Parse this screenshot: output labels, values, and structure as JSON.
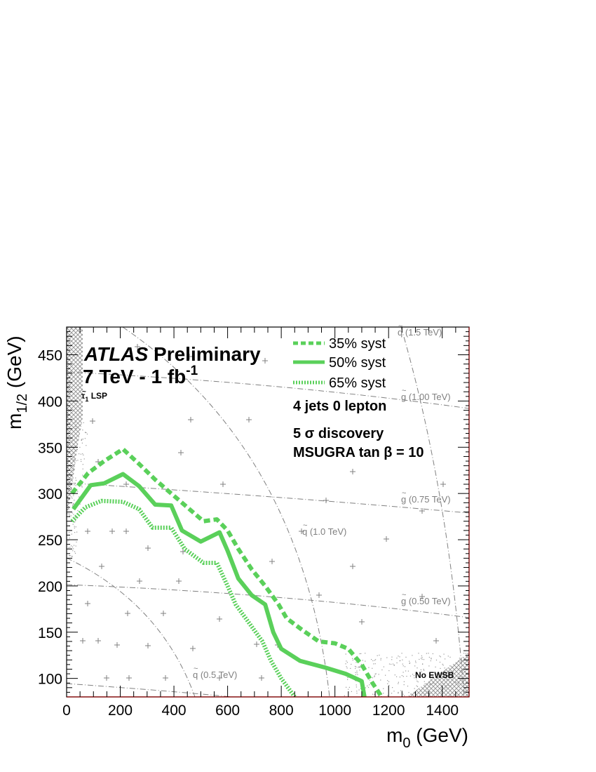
{
  "chart_data": {
    "type": "line",
    "title": "",
    "xlabel_main": "m",
    "xlabel_sub": "0",
    "xlabel_unit": " (GeV)",
    "ylabel_main": "m",
    "ylabel_sub": "1/2",
    "ylabel_unit": " (GeV)",
    "xlim": [
      0,
      1500
    ],
    "ylim": [
      80,
      480
    ],
    "x_ticks": [
      0,
      200,
      400,
      600,
      800,
      1000,
      1200,
      1400
    ],
    "y_ticks": [
      100,
      150,
      200,
      250,
      300,
      350,
      400,
      450
    ],
    "grid": false,
    "legend_position": "top-right",
    "series": [
      {
        "name": "35% syst",
        "style": "dashed",
        "color": "#5ad05a",
        "x": [
          20,
          80,
          140,
          210,
          270,
          330,
          390,
          450,
          510,
          560,
          600,
          640,
          690,
          740,
          790,
          820,
          880,
          940,
          1000,
          1050,
          1100,
          1140,
          1170
        ],
        "y": [
          300,
          322,
          335,
          348,
          332,
          315,
          300,
          285,
          270,
          272,
          260,
          240,
          218,
          200,
          180,
          165,
          152,
          140,
          138,
          132,
          115,
          95,
          82
        ]
      },
      {
        "name": "50% syst",
        "style": "solid",
        "color": "#5ad05a",
        "x": [
          25,
          90,
          140,
          210,
          270,
          330,
          390,
          430,
          500,
          570,
          600,
          640,
          690,
          740,
          770,
          800,
          870,
          960,
          1040,
          1100,
          1110
        ],
        "y": [
          283,
          309,
          311,
          321,
          308,
          288,
          287,
          260,
          248,
          258,
          238,
          208,
          190,
          180,
          150,
          132,
          119,
          112,
          105,
          97,
          80
        ]
      },
      {
        "name": "65% syst",
        "style": "dotted",
        "color": "#5ad05a",
        "x": [
          20,
          70,
          130,
          210,
          270,
          320,
          390,
          440,
          510,
          560,
          600,
          630,
          680,
          730,
          760,
          800,
          850
        ],
        "y": [
          270,
          285,
          292,
          291,
          283,
          263,
          263,
          240,
          225,
          225,
          200,
          180,
          160,
          140,
          120,
          100,
          80
        ]
      }
    ]
  },
  "legend": {
    "items": [
      {
        "label": "35% syst"
      },
      {
        "label": "50% syst"
      },
      {
        "label": "65% syst"
      }
    ]
  },
  "annotations": {
    "atlas": "ATLAS",
    "preliminary": " Preliminary",
    "energy": "7 TeV - 1 fb",
    "energy_sup": "-1",
    "stau_tau": "τ",
    "stau_sub": "1",
    "stau_lsp": " LSP",
    "channel": "4 jets 0 lepton",
    "discovery": "5 σ discovery",
    "model": "MSUGRA tan β = 10",
    "no_ewsb": "No EWSB",
    "sq15": "q (1.5 TeV)",
    "sq10": "q (1.0 TeV)",
    "sq05": "q (0.5 TeV)",
    "gl100": "g (1.00 TeV)",
    "gl075": "g (0.75 TeV)",
    "gl050": "g (0.50 TeV)"
  },
  "colors": {
    "contour": "#5ad05a",
    "iso_lines": "#808080",
    "frame": "#000000",
    "excluded": "#9a9a9a"
  }
}
